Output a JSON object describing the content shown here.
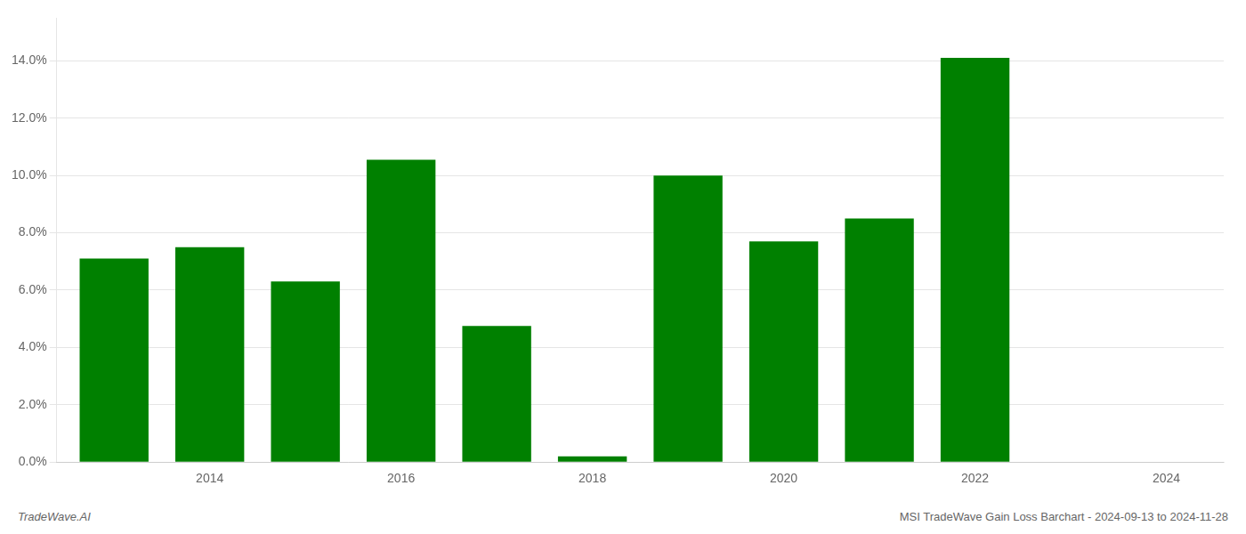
{
  "chart_data": {
    "type": "bar",
    "x": [
      2013,
      2014,
      2015,
      2016,
      2017,
      2018,
      2019,
      2020,
      2021,
      2022,
      2023
    ],
    "values": [
      0.071,
      0.075,
      0.063,
      0.1055,
      0.0475,
      0.002,
      0.1,
      0.077,
      0.085,
      0.141,
      0.0
    ],
    "color": "#008000",
    "xlim": [
      2012.4,
      2024.6
    ],
    "xticks": [
      2014,
      2016,
      2018,
      2020,
      2022,
      2024
    ],
    "ylim": [
      0,
      0.155
    ],
    "yticks": [
      {
        "value": 0.0,
        "label": "0.0%"
      },
      {
        "value": 0.02,
        "label": "2.0%"
      },
      {
        "value": 0.04,
        "label": "4.0%"
      },
      {
        "value": 0.06,
        "label": "6.0%"
      },
      {
        "value": 0.08,
        "label": "8.0%"
      },
      {
        "value": 0.1,
        "label": "10.0%"
      },
      {
        "value": 0.12,
        "label": "12.0%"
      },
      {
        "value": 0.14,
        "label": "14.0%"
      }
    ],
    "grid": "y",
    "annotations": [
      "TradeWave.AI",
      "MSI TradeWave Gain Loss Barchart - 2024-09-13 to 2024-11-28"
    ]
  }
}
